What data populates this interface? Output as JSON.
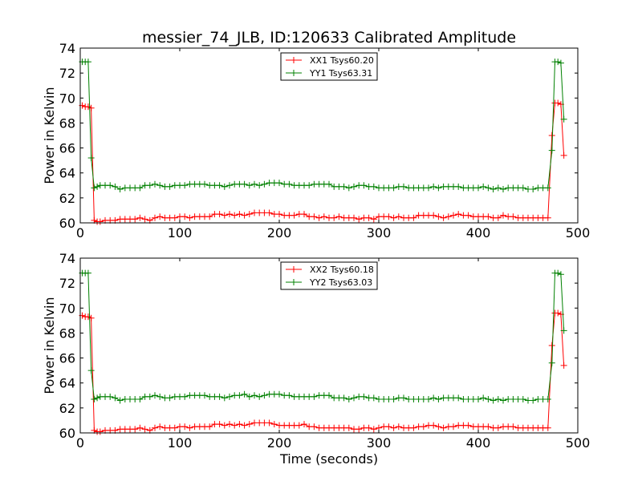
{
  "chart_data": {
    "title": "messier_74_JLB, ID:120633 Calibrated Amplitude",
    "xlabel": "Time (seconds)",
    "ylabel": "Power in Kelvin",
    "xlim": [
      0,
      500
    ],
    "ylim": [
      60,
      74
    ],
    "xticks": [
      "0",
      "100",
      "200",
      "300",
      "400",
      "500"
    ],
    "yticks": [
      "60",
      "62",
      "64",
      "66",
      "68",
      "70",
      "72",
      "74"
    ],
    "panels": [
      {
        "type": "line",
        "show_xlabel": false,
        "series": [
          {
            "name": "XX1 Tsys60.20",
            "color": "#ff0000",
            "x": [
              2,
              5,
              8,
              11,
              14,
              17,
              20,
              25,
              30,
              35,
              40,
              45,
              50,
              55,
              60,
              65,
              70,
              75,
              80,
              85,
              90,
              95,
              100,
              105,
              110,
              115,
              120,
              125,
              130,
              135,
              140,
              145,
              150,
              155,
              160,
              165,
              170,
              175,
              180,
              185,
              190,
              195,
              200,
              205,
              210,
              215,
              220,
              225,
              230,
              235,
              240,
              245,
              250,
              255,
              260,
              265,
              270,
              275,
              280,
              285,
              290,
              295,
              300,
              305,
              310,
              315,
              320,
              325,
              330,
              335,
              340,
              345,
              350,
              355,
              360,
              365,
              370,
              375,
              380,
              385,
              390,
              395,
              400,
              405,
              410,
              415,
              420,
              425,
              430,
              435,
              440,
              445,
              450,
              455,
              460,
              465,
              470,
              474,
              477,
              480,
              483,
              486
            ],
            "y": [
              69.4,
              69.3,
              69.3,
              69.2,
              60.2,
              60.1,
              60.1,
              60.2,
              60.2,
              60.2,
              60.3,
              60.3,
              60.3,
              60.3,
              60.4,
              60.3,
              60.2,
              60.4,
              60.5,
              60.4,
              60.4,
              60.4,
              60.5,
              60.5,
              60.4,
              60.5,
              60.5,
              60.5,
              60.5,
              60.7,
              60.7,
              60.6,
              60.7,
              60.6,
              60.7,
              60.6,
              60.7,
              60.8,
              60.8,
              60.8,
              60.8,
              60.7,
              60.7,
              60.6,
              60.6,
              60.6,
              60.7,
              60.7,
              60.5,
              60.5,
              60.4,
              60.5,
              60.4,
              60.4,
              60.5,
              60.4,
              60.4,
              60.4,
              60.3,
              60.4,
              60.4,
              60.3,
              60.5,
              60.5,
              60.5,
              60.4,
              60.5,
              60.4,
              60.4,
              60.4,
              60.6,
              60.6,
              60.6,
              60.6,
              60.5,
              60.4,
              60.5,
              60.6,
              60.7,
              60.6,
              60.6,
              60.5,
              60.5,
              60.5,
              60.5,
              60.4,
              60.4,
              60.6,
              60.5,
              60.5,
              60.4,
              60.4,
              60.4,
              60.4,
              60.4,
              60.4,
              60.4,
              67.0,
              69.6,
              69.6,
              69.5,
              65.4
            ]
          },
          {
            "name": "YY1 Tsys63.31",
            "color": "#008000",
            "x": [
              2,
              5,
              8,
              11,
              14,
              17,
              20,
              25,
              30,
              35,
              40,
              45,
              50,
              55,
              60,
              65,
              70,
              75,
              80,
              85,
              90,
              95,
              100,
              105,
              110,
              115,
              120,
              125,
              130,
              135,
              140,
              145,
              150,
              155,
              160,
              165,
              170,
              175,
              180,
              185,
              190,
              195,
              200,
              205,
              210,
              215,
              220,
              225,
              230,
              235,
              240,
              245,
              250,
              255,
              260,
              265,
              270,
              275,
              280,
              285,
              290,
              295,
              300,
              305,
              310,
              315,
              320,
              325,
              330,
              335,
              340,
              345,
              350,
              355,
              360,
              365,
              370,
              375,
              380,
              385,
              390,
              395,
              400,
              405,
              410,
              415,
              420,
              425,
              430,
              435,
              440,
              445,
              450,
              455,
              460,
              465,
              470,
              474,
              477,
              480,
              483,
              486
            ],
            "y": [
              72.9,
              72.9,
              72.9,
              65.2,
              62.8,
              62.9,
              63.0,
              63.0,
              63.0,
              62.9,
              62.7,
              62.8,
              62.8,
              62.8,
              62.8,
              63.0,
              63.0,
              63.1,
              63.0,
              62.9,
              62.9,
              63.0,
              63.0,
              63.0,
              63.1,
              63.1,
              63.1,
              63.1,
              63.0,
              63.0,
              63.0,
              62.9,
              63.0,
              63.1,
              63.1,
              63.1,
              63.0,
              63.1,
              63.0,
              63.1,
              63.2,
              63.2,
              63.2,
              63.1,
              63.1,
              63.0,
              63.0,
              63.0,
              63.0,
              63.1,
              63.1,
              63.1,
              63.1,
              62.9,
              62.9,
              62.9,
              62.8,
              62.9,
              63.0,
              63.0,
              62.9,
              62.9,
              62.8,
              62.8,
              62.8,
              62.8,
              62.9,
              62.9,
              62.8,
              62.8,
              62.8,
              62.8,
              62.8,
              62.9,
              62.8,
              62.9,
              62.9,
              62.9,
              62.9,
              62.8,
              62.8,
              62.8,
              62.8,
              62.9,
              62.8,
              62.7,
              62.8,
              62.7,
              62.8,
              62.8,
              62.8,
              62.8,
              62.7,
              62.7,
              62.8,
              62.8,
              62.8,
              65.8,
              72.9,
              72.9,
              72.8,
              68.3
            ]
          }
        ]
      },
      {
        "type": "line",
        "show_xlabel": true,
        "series": [
          {
            "name": "XX2 Tsys60.18",
            "color": "#ff0000",
            "x": [
              2,
              5,
              8,
              11,
              14,
              17,
              20,
              25,
              30,
              35,
              40,
              45,
              50,
              55,
              60,
              65,
              70,
              75,
              80,
              85,
              90,
              95,
              100,
              105,
              110,
              115,
              120,
              125,
              130,
              135,
              140,
              145,
              150,
              155,
              160,
              165,
              170,
              175,
              180,
              185,
              190,
              195,
              200,
              205,
              210,
              215,
              220,
              225,
              230,
              235,
              240,
              245,
              250,
              255,
              260,
              265,
              270,
              275,
              280,
              285,
              290,
              295,
              300,
              305,
              310,
              315,
              320,
              325,
              330,
              335,
              340,
              345,
              350,
              355,
              360,
              365,
              370,
              375,
              380,
              385,
              390,
              395,
              400,
              405,
              410,
              415,
              420,
              425,
              430,
              435,
              440,
              445,
              450,
              455,
              460,
              465,
              470,
              474,
              477,
              480,
              483,
              486
            ],
            "y": [
              69.4,
              69.3,
              69.3,
              69.2,
              60.2,
              60.1,
              60.1,
              60.2,
              60.2,
              60.2,
              60.3,
              60.3,
              60.3,
              60.3,
              60.4,
              60.3,
              60.2,
              60.4,
              60.5,
              60.4,
              60.4,
              60.4,
              60.5,
              60.5,
              60.4,
              60.5,
              60.5,
              60.5,
              60.5,
              60.7,
              60.7,
              60.6,
              60.7,
              60.6,
              60.7,
              60.6,
              60.7,
              60.8,
              60.8,
              60.8,
              60.8,
              60.7,
              60.6,
              60.6,
              60.6,
              60.6,
              60.6,
              60.7,
              60.5,
              60.5,
              60.4,
              60.4,
              60.4,
              60.4,
              60.4,
              60.4,
              60.4,
              60.3,
              60.3,
              60.4,
              60.4,
              60.3,
              60.4,
              60.5,
              60.5,
              60.4,
              60.5,
              60.4,
              60.4,
              60.4,
              60.5,
              60.5,
              60.6,
              60.6,
              60.5,
              60.4,
              60.5,
              60.5,
              60.6,
              60.6,
              60.6,
              60.5,
              60.5,
              60.5,
              60.5,
              60.4,
              60.4,
              60.5,
              60.5,
              60.5,
              60.4,
              60.4,
              60.4,
              60.4,
              60.4,
              60.4,
              60.4,
              67.0,
              69.6,
              69.6,
              69.5,
              65.4
            ]
          },
          {
            "name": "YY2 Tsys63.03",
            "color": "#008000",
            "x": [
              2,
              5,
              8,
              11,
              14,
              17,
              20,
              25,
              30,
              35,
              40,
              45,
              50,
              55,
              60,
              65,
              70,
              75,
              80,
              85,
              90,
              95,
              100,
              105,
              110,
              115,
              120,
              125,
              130,
              135,
              140,
              145,
              150,
              155,
              160,
              165,
              170,
              175,
              180,
              185,
              190,
              195,
              200,
              205,
              210,
              215,
              220,
              225,
              230,
              235,
              240,
              245,
              250,
              255,
              260,
              265,
              270,
              275,
              280,
              285,
              290,
              295,
              300,
              305,
              310,
              315,
              320,
              325,
              330,
              335,
              340,
              345,
              350,
              355,
              360,
              365,
              370,
              375,
              380,
              385,
              390,
              395,
              400,
              405,
              410,
              415,
              420,
              425,
              430,
              435,
              440,
              445,
              450,
              455,
              460,
              465,
              470,
              474,
              477,
              480,
              483,
              486
            ],
            "y": [
              72.8,
              72.8,
              72.8,
              65.0,
              62.7,
              62.8,
              62.9,
              62.9,
              62.9,
              62.8,
              62.6,
              62.7,
              62.7,
              62.7,
              62.7,
              62.9,
              62.9,
              63.0,
              62.9,
              62.8,
              62.8,
              62.9,
              62.9,
              62.9,
              63.0,
              63.0,
              63.0,
              63.0,
              62.9,
              62.9,
              62.9,
              62.8,
              62.9,
              63.0,
              63.0,
              63.1,
              62.9,
              63.0,
              62.9,
              63.0,
              63.1,
              63.1,
              63.1,
              63.0,
              63.0,
              62.9,
              62.9,
              62.9,
              62.9,
              62.9,
              63.0,
              63.0,
              63.0,
              62.8,
              62.8,
              62.8,
              62.7,
              62.8,
              62.9,
              62.9,
              62.8,
              62.8,
              62.7,
              62.7,
              62.7,
              62.7,
              62.8,
              62.8,
              62.7,
              62.7,
              62.7,
              62.7,
              62.7,
              62.8,
              62.7,
              62.8,
              62.8,
              62.8,
              62.8,
              62.7,
              62.7,
              62.7,
              62.7,
              62.8,
              62.7,
              62.6,
              62.7,
              62.6,
              62.7,
              62.7,
              62.7,
              62.7,
              62.6,
              62.6,
              62.7,
              62.7,
              62.7,
              65.6,
              72.8,
              72.8,
              72.7,
              68.2
            ]
          }
        ]
      }
    ]
  }
}
